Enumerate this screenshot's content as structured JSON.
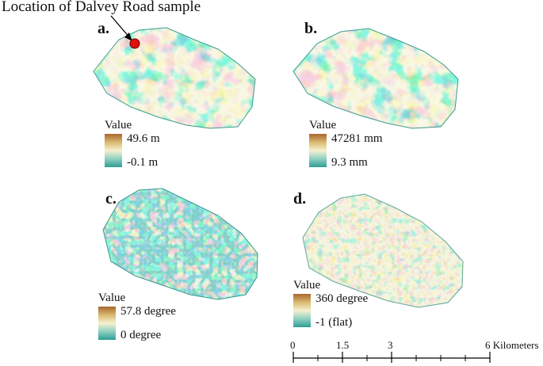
{
  "annotation": {
    "text": "Location of Dalvey Road sample"
  },
  "panels": [
    {
      "id": "a",
      "label": "a.",
      "legend": {
        "title": "Value",
        "high": "49.6 m",
        "low": "-0.1 m"
      }
    },
    {
      "id": "b",
      "label": "b.",
      "legend": {
        "title": "Value",
        "high": "47281 mm",
        "low": "9.3 mm"
      }
    },
    {
      "id": "c",
      "label": "c.",
      "legend": {
        "title": "Value",
        "high": "57.8 degree",
        "low": "0 degree"
      }
    },
    {
      "id": "d",
      "label": "d.",
      "legend": {
        "title": "Value",
        "high": "360 degree",
        "low": "-1 (flat)"
      }
    }
  ],
  "scale_bar": {
    "ticks": [
      "0",
      "1.5",
      "3",
      "6 Kilometers"
    ]
  },
  "colors": {
    "ramp_high": "#a8662d",
    "ramp_mid": "#f6f1cf",
    "ramp_low": "#2e9e93",
    "sample_marker": "#e01010"
  }
}
